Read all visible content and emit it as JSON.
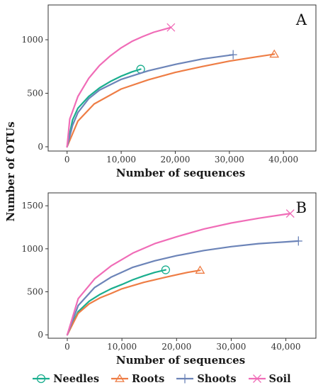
{
  "chart_data": [
    {
      "type": "line",
      "panel_label": "A",
      "xlabel": "Number of sequences",
      "ylabel": "Number of OTUs",
      "xlim": [
        -3500,
        46000
      ],
      "ylim": [
        -40,
        1325
      ],
      "xticks": [
        0,
        10000,
        20000,
        30000,
        40000
      ],
      "xtick_labels": [
        "0",
        "10,000",
        "20,000",
        "30,000",
        "40,000"
      ],
      "yticks": [
        0,
        500,
        1000
      ],
      "ytick_labels": [
        "0",
        "500",
        "1000"
      ],
      "grid": false,
      "series": [
        {
          "name": "Needles",
          "color": "#1aae8e",
          "marker": "circle",
          "x": [
            0,
            1000,
            2000,
            4000,
            6000,
            8000,
            10000,
            12000,
            13600
          ],
          "y": [
            0,
            250,
            360,
            470,
            550,
            610,
            660,
            700,
            725
          ]
        },
        {
          "name": "Roots",
          "color": "#ee7d45",
          "marker": "triangle",
          "x": [
            0,
            2000,
            5000,
            10000,
            15000,
            20000,
            25000,
            30000,
            35000,
            38300
          ],
          "y": [
            0,
            240,
            400,
            540,
            625,
            695,
            750,
            800,
            840,
            865
          ]
        },
        {
          "name": "Shoots",
          "color": "#6c84b8",
          "marker": "plus",
          "x": [
            0,
            1000,
            2000,
            4000,
            6000,
            10000,
            15000,
            20000,
            25000,
            30700
          ],
          "y": [
            0,
            200,
            320,
            450,
            530,
            630,
            710,
            770,
            820,
            860
          ]
        },
        {
          "name": "Soil",
          "color": "#f06cb7",
          "marker": "x",
          "x": [
            0,
            500,
            1000,
            2000,
            4000,
            6000,
            8000,
            10000,
            12000,
            14000,
            16000,
            19200
          ],
          "y": [
            0,
            260,
            330,
            470,
            640,
            760,
            850,
            925,
            985,
            1030,
            1070,
            1115
          ]
        }
      ]
    },
    {
      "type": "line",
      "panel_label": "B",
      "xlabel": "Number of sequences",
      "ylabel": "Number of OTUs",
      "xlim": [
        -3500,
        45500
      ],
      "ylim": [
        -40,
        1650
      ],
      "xticks": [
        0,
        10000,
        20000,
        30000,
        40000
      ],
      "xtick_labels": [
        "0",
        "10,000",
        "20,000",
        "30,000",
        "40,000"
      ],
      "yticks": [
        0,
        500,
        1000,
        1500
      ],
      "ytick_labels": [
        "0",
        "500",
        "1000",
        "1500"
      ],
      "grid": false,
      "series": [
        {
          "name": "Needles",
          "color": "#1aae8e",
          "marker": "circle",
          "x": [
            0,
            2000,
            4000,
            6000,
            8000,
            10000,
            12000,
            14000,
            16000,
            18000
          ],
          "y": [
            0,
            270,
            390,
            470,
            535,
            585,
            640,
            685,
            725,
            755
          ]
        },
        {
          "name": "Roots",
          "color": "#ee7d45",
          "marker": "triangle",
          "x": [
            0,
            2000,
            4000,
            6000,
            8000,
            10000,
            14000,
            18000,
            22000,
            24300
          ],
          "y": [
            0,
            250,
            360,
            430,
            480,
            535,
            610,
            670,
            725,
            750
          ]
        },
        {
          "name": "Shoots",
          "color": "#6c84b8",
          "marker": "plus",
          "x": [
            0,
            2000,
            5000,
            8000,
            12000,
            16000,
            20000,
            25000,
            30000,
            35000,
            40000,
            42300
          ],
          "y": [
            0,
            340,
            550,
            670,
            785,
            860,
            920,
            980,
            1025,
            1060,
            1080,
            1090
          ]
        },
        {
          "name": "Soil",
          "color": "#f06cb7",
          "marker": "x",
          "x": [
            0,
            2000,
            5000,
            8000,
            12000,
            16000,
            20000,
            25000,
            30000,
            35000,
            40800
          ],
          "y": [
            0,
            420,
            650,
            800,
            950,
            1060,
            1140,
            1230,
            1300,
            1355,
            1410
          ]
        }
      ]
    }
  ],
  "legend": {
    "position": "bottom",
    "items": [
      {
        "label": "Needles",
        "color": "#1aae8e",
        "marker": "circle"
      },
      {
        "label": "Roots",
        "color": "#ee7d45",
        "marker": "triangle"
      },
      {
        "label": "Shoots",
        "color": "#6c84b8",
        "marker": "plus"
      },
      {
        "label": "Soil",
        "color": "#f06cb7",
        "marker": "x"
      }
    ]
  }
}
